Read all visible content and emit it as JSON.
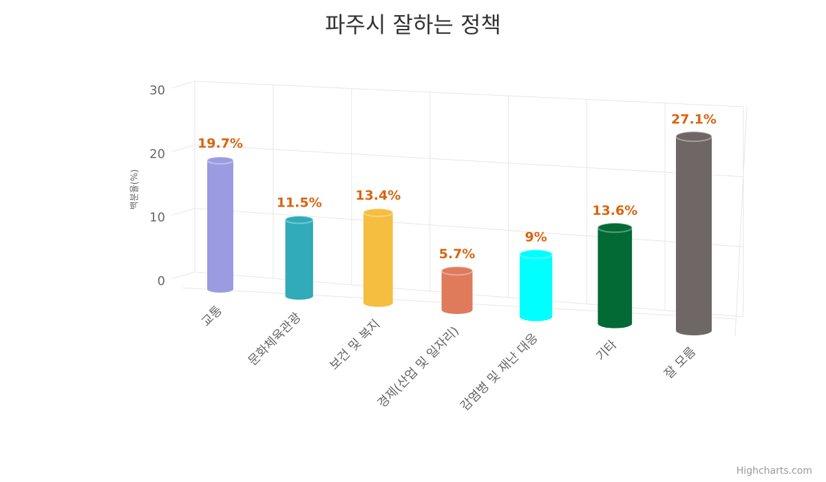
{
  "chart_data": {
    "type": "cylinder",
    "title": "파주시 잘하는 정책",
    "categories": [
      "교통",
      "문화체육관광",
      "보건 및 복지",
      "경제(산업 및 일자리)",
      "감염병 및 재난 대응",
      "기타",
      "잘 모름"
    ],
    "values": [
      19.7,
      11.5,
      13.4,
      5.7,
      9,
      13.6,
      27.1
    ],
    "value_labels": [
      "19.7%",
      "11.5%",
      "13.4%",
      "5.7%",
      "9%",
      "13.6%",
      "27.1%"
    ],
    "colors": [
      "#9b9be2",
      "#31aab9",
      "#f5be41",
      "#df7a5b",
      "#00ffff",
      "#036a36",
      "#6f6766"
    ],
    "label_color": "#d9640f",
    "y_axis_title": "백분율(%)",
    "ylim": [
      0,
      30
    ],
    "yticks": [
      0,
      10,
      20,
      30
    ],
    "grid": true,
    "credits": "Highcharts.com"
  }
}
